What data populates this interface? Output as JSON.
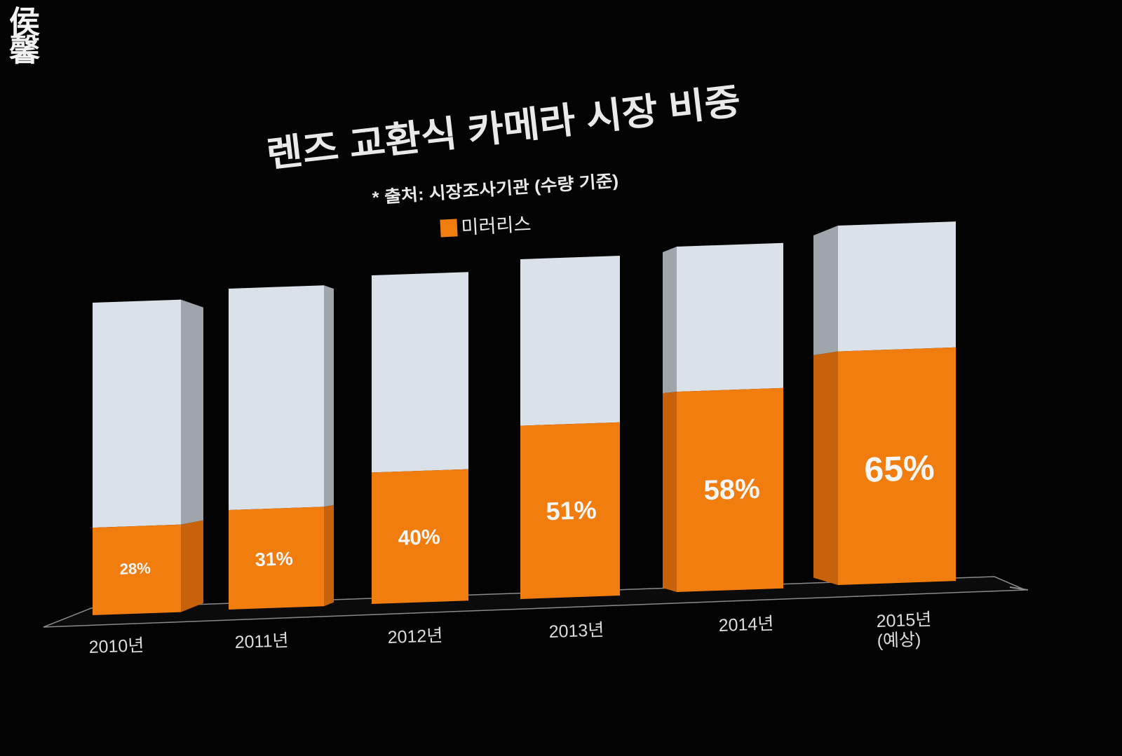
{
  "watermark": "侯馨",
  "colors": {
    "background": "#030303",
    "mirrorless": "#f07d0e",
    "remainder": "#dbe1e8",
    "text": "#e9e9e9"
  },
  "chart_data": {
    "type": "bar",
    "stacked": true,
    "style": "3d",
    "title": "렌즈 교환식 카메라 시장 비중",
    "subtitle": "* 출처: 시장조사기관 (수량 기준)",
    "categories": [
      "2010년",
      "2011년",
      "2012년",
      "2013년",
      "2014년",
      "2015년 (예상)"
    ],
    "series": [
      {
        "name": "미러리스",
        "values": [
          28,
          31,
          40,
          51,
          58,
          65
        ],
        "data_labels": [
          "28%",
          "31%",
          "40%",
          "51%",
          "58%",
          "65%"
        ],
        "color": "#f07d0e"
      }
    ],
    "remainder_color": "#dbe1e8",
    "ylim": [
      0,
      100
    ],
    "grid": false,
    "legend": "top-center"
  }
}
